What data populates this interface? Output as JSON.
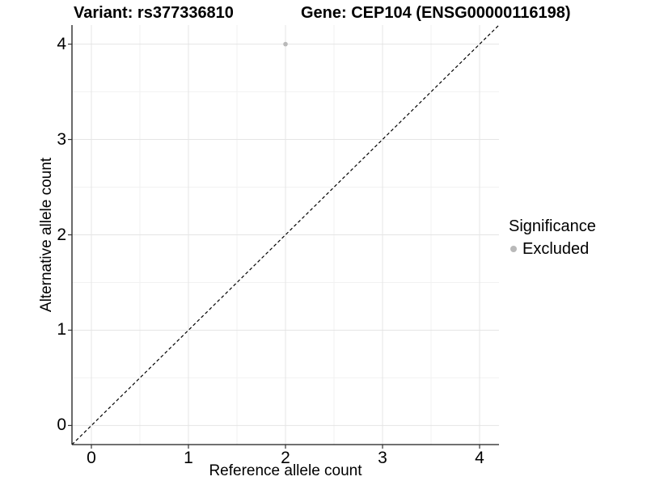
{
  "figure": {
    "title_variant": "Variant: rs377336810",
    "title_gene": "Gene: CEP104 (ENSG00000116198)"
  },
  "chart_data": {
    "type": "scatter",
    "title_left": "Variant: rs377336810",
    "title_right": "Gene: CEP104 (ENSG00000116198)",
    "xlabel": "Reference allele count",
    "ylabel": "Alternative allele count",
    "xlim": [
      -0.2,
      4.2
    ],
    "ylim": [
      -0.2,
      4.2
    ],
    "x_ticks": [
      0,
      1,
      2,
      3,
      4
    ],
    "y_ticks": [
      0,
      1,
      2,
      3,
      4
    ],
    "x_minor_ticks": [
      0.5,
      1.5,
      2.5,
      3.5
    ],
    "y_minor_ticks": [
      0.5,
      1.5,
      2.5,
      3.5
    ],
    "grid": "major and minor gridlines on white background",
    "points": [
      {
        "x": 2,
        "y": 4,
        "series": "Excluded"
      }
    ],
    "reference_line": {
      "type": "abline",
      "slope": 1,
      "intercept": 0,
      "linetype": "dashed",
      "color": "#000000"
    },
    "legend": {
      "title": "Significance",
      "position": "right",
      "entries": [
        {
          "label": "Excluded",
          "color": "#b9b9b9"
        }
      ]
    },
    "colors": {
      "point_excluded": "#b9b9b9",
      "grid_major": "#e5e5e5",
      "grid_minor": "#f2f2f2",
      "axis_line": "#1a1a1a",
      "tick_mark": "#333333",
      "text": "#000000",
      "background": "#ffffff"
    }
  }
}
